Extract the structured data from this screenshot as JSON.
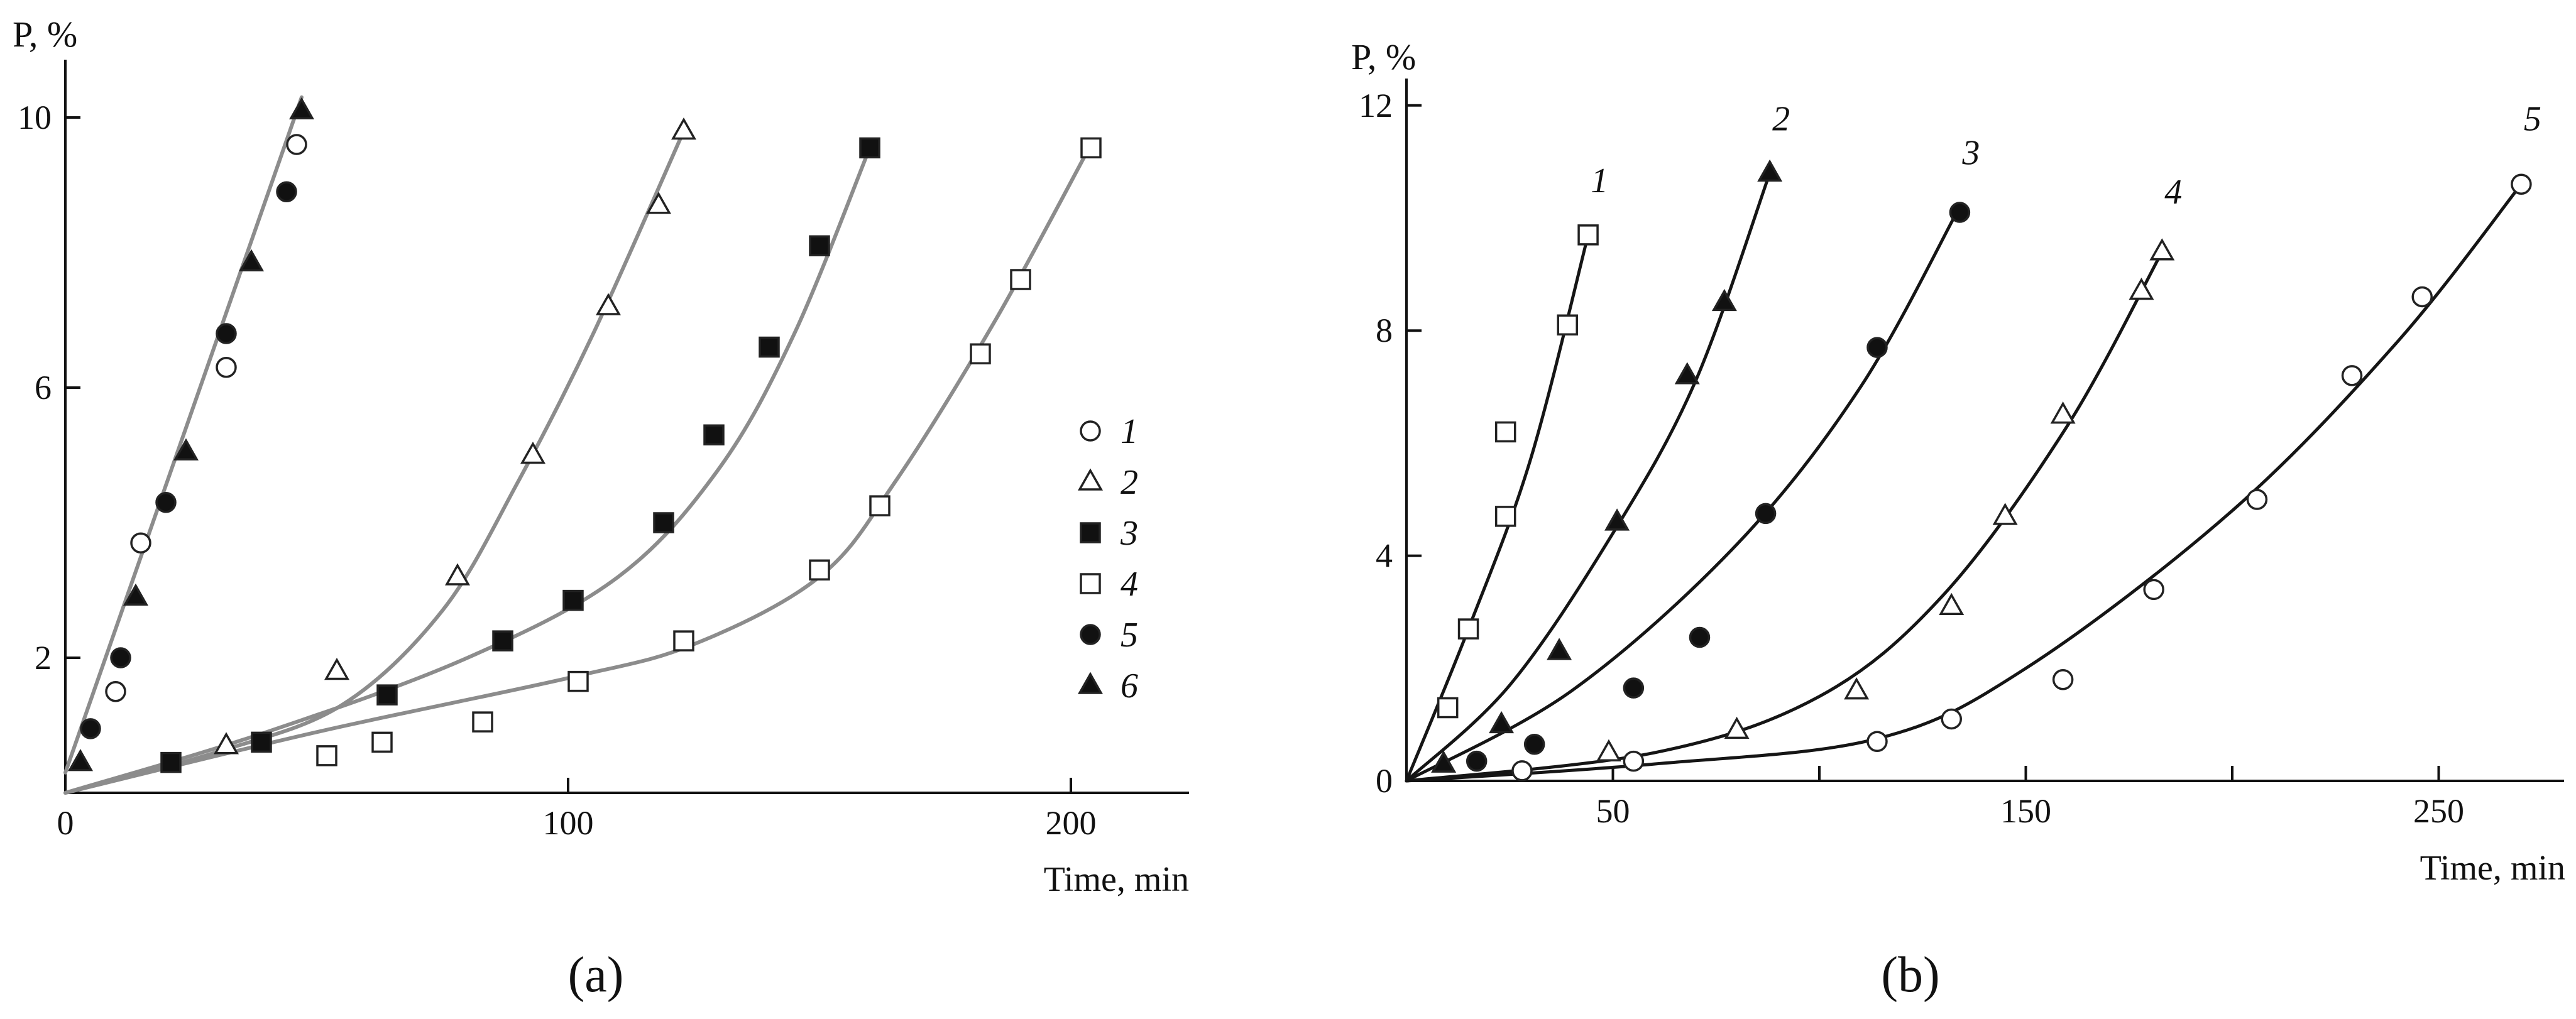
{
  "chart_data": [
    {
      "panel": "(a)",
      "type": "scatter",
      "ylabel": "P, %",
      "xlabel": "Time, min",
      "xlim": [
        0,
        224
      ],
      "ylim": [
        0,
        10.6
      ],
      "x_ticks": [
        0,
        100,
        200
      ],
      "y_ticks": [
        2,
        6,
        10
      ],
      "legend_position": "right",
      "series": [
        {
          "name": "1",
          "marker": "circle-open",
          "points": [
            [
              10,
              1.5
            ],
            [
              15,
              3.7
            ],
            [
              32,
              6.3
            ],
            [
              46,
              9.6
            ]
          ]
        },
        {
          "name": "2",
          "marker": "triangle-open",
          "points": [
            [
              32,
              0.7
            ],
            [
              54,
              1.8
            ],
            [
              78,
              3.2
            ],
            [
              93,
              5.0
            ],
            [
              108,
              7.2
            ],
            [
              118,
              8.7
            ],
            [
              123,
              9.8
            ]
          ]
        },
        {
          "name": "3",
          "marker": "square-filled",
          "points": [
            [
              21,
              0.45
            ],
            [
              39,
              0.75
            ],
            [
              64,
              1.45
            ],
            [
              87,
              2.25
            ],
            [
              101,
              2.85
            ],
            [
              119,
              4.0
            ],
            [
              129,
              5.3
            ],
            [
              140,
              6.6
            ],
            [
              150,
              8.1
            ],
            [
              160,
              9.55
            ]
          ]
        },
        {
          "name": "4",
          "marker": "square-open",
          "points": [
            [
              52,
              0.55
            ],
            [
              63,
              0.75
            ],
            [
              83,
              1.05
            ],
            [
              102,
              1.65
            ],
            [
              123,
              2.25
            ],
            [
              150,
              3.3
            ],
            [
              162,
              4.25
            ],
            [
              182,
              6.5
            ],
            [
              190,
              7.6
            ],
            [
              204,
              9.55
            ]
          ]
        },
        {
          "name": "5",
          "marker": "circle-filled",
          "points": [
            [
              5,
              0.95
            ],
            [
              11,
              2.0
            ],
            [
              20,
              4.3
            ],
            [
              32,
              6.8
            ],
            [
              44,
              8.9
            ]
          ]
        },
        {
          "name": "6",
          "marker": "triangle-filled",
          "points": [
            [
              3,
              0.45
            ],
            [
              14,
              2.9
            ],
            [
              24,
              5.05
            ],
            [
              37,
              7.85
            ],
            [
              47,
              10.1
            ]
          ]
        }
      ],
      "fit_curves": [
        {
          "for": "1,5,6",
          "points": [
            [
              0,
              0.3
            ],
            [
              47,
              10.3
            ]
          ]
        },
        {
          "for": "2",
          "points": [
            [
              0,
              0
            ],
            [
              30,
              0.6
            ],
            [
              55,
              1.3
            ],
            [
              75,
              2.7
            ],
            [
              90,
              4.6
            ],
            [
              105,
              6.8
            ],
            [
              123,
              9.8
            ]
          ]
        },
        {
          "for": "3",
          "points": [
            [
              0,
              0
            ],
            [
              40,
              0.9
            ],
            [
              80,
              2.0
            ],
            [
              110,
              3.2
            ],
            [
              130,
              4.8
            ],
            [
              145,
              6.8
            ],
            [
              160,
              9.55
            ]
          ]
        },
        {
          "for": "4",
          "points": [
            [
              0,
              0
            ],
            [
              50,
              0.9
            ],
            [
              100,
              1.7
            ],
            [
              125,
              2.2
            ],
            [
              150,
              3.2
            ],
            [
              165,
              4.6
            ],
            [
              185,
              7.0
            ],
            [
              204,
              9.6
            ]
          ]
        }
      ]
    },
    {
      "panel": "(b)",
      "type": "scatter",
      "ylabel": "P, %",
      "xlabel": "Time, min",
      "xlim": [
        0,
        278
      ],
      "ylim": [
        0,
        12.3
      ],
      "x_ticks": [
        50,
        150,
        250
      ],
      "x_minor_ticks": [
        100,
        200
      ],
      "y_ticks": [
        0,
        4,
        8,
        12
      ],
      "curve_labels": [
        "1",
        "2",
        "3",
        "4",
        "5"
      ],
      "series": [
        {
          "name": "1",
          "marker": "square-open",
          "points": [
            [
              10,
              1.3
            ],
            [
              15,
              2.7
            ],
            [
              24,
              4.7
            ],
            [
              24,
              6.2
            ],
            [
              39,
              8.1
            ],
            [
              44,
              9.7
            ]
          ]
        },
        {
          "name": "2",
          "marker": "triangle-filled",
          "points": [
            [
              9,
              0.3
            ],
            [
              23,
              1.0
            ],
            [
              37,
              2.3
            ],
            [
              51,
              4.6
            ],
            [
              68,
              7.2
            ],
            [
              77,
              8.5
            ],
            [
              88,
              10.8
            ]
          ]
        },
        {
          "name": "3",
          "marker": "circle-filled",
          "points": [
            [
              17,
              0.35
            ],
            [
              31,
              0.65
            ],
            [
              55,
              1.65
            ],
            [
              71,
              2.55
            ],
            [
              87,
              4.75
            ],
            [
              114,
              7.7
            ],
            [
              134,
              10.1
            ]
          ]
        },
        {
          "name": "4",
          "marker": "triangle-open",
          "points": [
            [
              49,
              0.5
            ],
            [
              80,
              0.9
            ],
            [
              109,
              1.6
            ],
            [
              132,
              3.1
            ],
            [
              145,
              4.7
            ],
            [
              159,
              6.5
            ],
            [
              178,
              8.7
            ],
            [
              183,
              9.4
            ]
          ]
        },
        {
          "name": "5",
          "marker": "circle-open",
          "points": [
            [
              28,
              0.18
            ],
            [
              55,
              0.35
            ],
            [
              114,
              0.7
            ],
            [
              132,
              1.1
            ],
            [
              159,
              1.8
            ],
            [
              181,
              3.4
            ],
            [
              206,
              5.0
            ],
            [
              229,
              7.2
            ],
            [
              246,
              8.6
            ],
            [
              270,
              10.6
            ]
          ]
        }
      ],
      "fit_curves": [
        {
          "for": "1",
          "points": [
            [
              0,
              0
            ],
            [
              15,
              2.7
            ],
            [
              30,
              5.7
            ],
            [
              44,
              9.7
            ]
          ]
        },
        {
          "for": "2",
          "points": [
            [
              0,
              0
            ],
            [
              25,
              1.7
            ],
            [
              50,
              4.4
            ],
            [
              70,
              7.1
            ],
            [
              88,
              10.8
            ]
          ]
        },
        {
          "for": "3",
          "points": [
            [
              0,
              0
            ],
            [
              40,
              1.6
            ],
            [
              80,
              4.2
            ],
            [
              110,
              7.0
            ],
            [
              134,
              10.2
            ]
          ]
        },
        {
          "for": "4",
          "points": [
            [
              0,
              0
            ],
            [
              60,
              0.5
            ],
            [
              100,
              1.5
            ],
            [
              130,
              3.3
            ],
            [
              160,
              6.3
            ],
            [
              183,
              9.4
            ]
          ]
        },
        {
          "for": "5",
          "points": [
            [
              0,
              0
            ],
            [
              60,
              0.3
            ],
            [
              114,
              0.75
            ],
            [
              150,
              2.0
            ],
            [
              200,
              4.8
            ],
            [
              240,
              7.8
            ],
            [
              270,
              10.6
            ]
          ]
        }
      ]
    }
  ]
}
